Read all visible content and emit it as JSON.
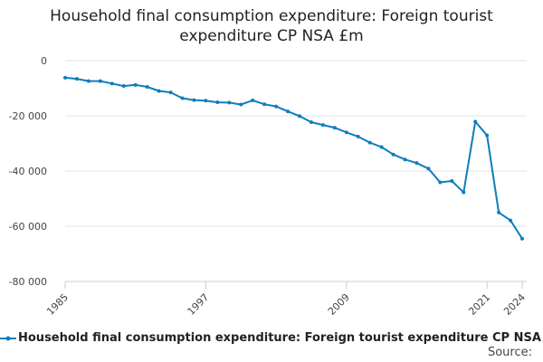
{
  "chart_data": {
    "type": "line",
    "title_lines": [
      "Household final consumption expenditure: Foreign tourist",
      "expenditure CP NSA £m"
    ],
    "xlabel": "",
    "ylabel": "",
    "xlim": [
      1985,
      2024
    ],
    "ylim": [
      -80000,
      0
    ],
    "x_ticks": [
      1985,
      1997,
      2009,
      2021,
      2024
    ],
    "y_ticks": [
      0,
      -20000,
      -40000,
      -60000,
      -80000
    ],
    "y_tick_labels": [
      "0",
      "-20 000",
      "-40 000",
      "-60 000",
      "-80 000"
    ],
    "grid": true,
    "legend_position": "bottom",
    "series": [
      {
        "name": "Household final consumption expenditure: Foreign tourist expenditure CP NSA £m",
        "color": "#0e7dbd",
        "x": [
          1985,
          1986,
          1987,
          1988,
          1989,
          1990,
          1991,
          1992,
          1993,
          1994,
          1995,
          1996,
          1997,
          1998,
          1999,
          2000,
          2001,
          2002,
          2003,
          2004,
          2005,
          2006,
          2007,
          2008,
          2009,
          2010,
          2011,
          2012,
          2013,
          2014,
          2015,
          2016,
          2017,
          2018,
          2019,
          2020,
          2021,
          2022,
          2023,
          2024
        ],
        "values": [
          -6200,
          -6600,
          -7400,
          -7400,
          -8300,
          -9200,
          -8800,
          -9500,
          -11000,
          -11500,
          -13600,
          -14300,
          -14500,
          -15100,
          -15200,
          -15900,
          -14400,
          -15800,
          -16600,
          -18400,
          -20100,
          -22300,
          -23300,
          -24300,
          -26000,
          -27500,
          -29700,
          -31300,
          -34000,
          -35800,
          -37100,
          -39100,
          -44100,
          -43600,
          -47700,
          -22100,
          -27100,
          -55000,
          -57900,
          -64500
        ]
      }
    ]
  },
  "legend": {
    "label": "Household final consumption expenditure: Foreign tourist expenditure CP NSA £m"
  },
  "source_label": "Source:"
}
